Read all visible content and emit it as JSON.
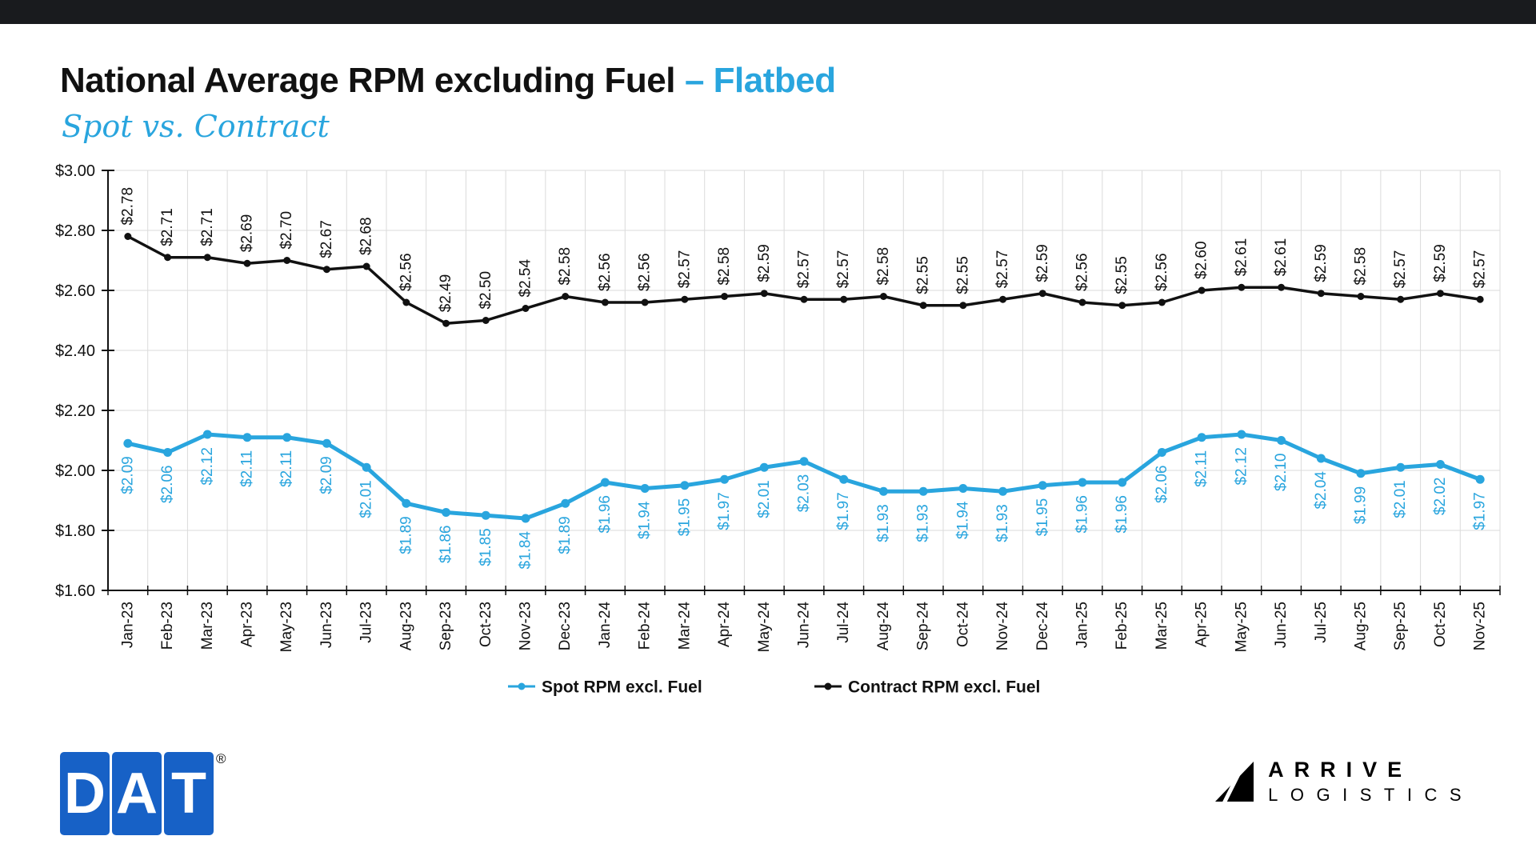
{
  "header": {
    "title_main": "National Average RPM excluding Fuel",
    "title_accent": "– Flatbed",
    "subtitle": "Spot vs. Contract"
  },
  "colors": {
    "accent_blue": "#29a5de",
    "contract_black": "#111111",
    "dat_logo_blue": "#1761c6",
    "top_bar": "#191b1e",
    "gridline": "#dbdbdb"
  },
  "chart_data": {
    "type": "line",
    "title": "National Average RPM excluding Fuel – Flatbed",
    "subtitle": "Spot vs. Contract",
    "x": [
      "Jan-23",
      "Feb-23",
      "Mar-23",
      "Apr-23",
      "May-23",
      "Jun-23",
      "Jul-23",
      "Aug-23",
      "Sep-23",
      "Oct-23",
      "Nov-23",
      "Dec-23",
      "Jan-24",
      "Feb-24",
      "Mar-24",
      "Apr-24",
      "May-24",
      "Jun-24",
      "Jul-24",
      "Aug-24",
      "Sep-24",
      "Oct-24",
      "Nov-24",
      "Dec-24",
      "Jan-25",
      "Feb-25",
      "Mar-25",
      "Apr-25",
      "May-25",
      "Jun-25",
      "Jul-25",
      "Aug-25",
      "Sep-25",
      "Oct-25",
      "Nov-25"
    ],
    "series": [
      {
        "name": "Spot RPM excl. Fuel",
        "color": "#29a5de",
        "label_side": "below",
        "values": [
          2.09,
          2.06,
          2.12,
          2.11,
          2.11,
          2.09,
          2.01,
          1.89,
          1.86,
          1.85,
          1.84,
          1.89,
          1.96,
          1.94,
          1.95,
          1.97,
          2.01,
          2.03,
          1.97,
          1.93,
          1.93,
          1.94,
          1.93,
          1.95,
          1.96,
          1.96,
          2.06,
          2.11,
          2.12,
          2.1,
          2.04,
          1.99,
          2.01,
          2.02,
          1.97
        ]
      },
      {
        "name": "Contract RPM excl. Fuel",
        "color": "#111111",
        "label_side": "above",
        "values": [
          2.78,
          2.71,
          2.71,
          2.69,
          2.7,
          2.67,
          2.68,
          2.56,
          2.49,
          2.5,
          2.54,
          2.58,
          2.56,
          2.56,
          2.57,
          2.58,
          2.59,
          2.57,
          2.57,
          2.58,
          2.55,
          2.55,
          2.57,
          2.59,
          2.56,
          2.55,
          2.56,
          2.6,
          2.61,
          2.61,
          2.59,
          2.58,
          2.57,
          2.59,
          2.57
        ]
      }
    ],
    "ylim": [
      1.6,
      3.0
    ],
    "ytick_step": 0.2,
    "ytick_labels": [
      "$3.00",
      "$2.80",
      "$2.60",
      "$2.40",
      "$2.20",
      "$2.00",
      "$1.80",
      "$1.60"
    ],
    "value_prefix": "$",
    "grid": true,
    "legend_position": "bottom"
  },
  "footer": {
    "dat": {
      "letters": [
        "D",
        "A",
        "T"
      ],
      "registered": "®"
    },
    "arrive": {
      "line1": "ARRIVE",
      "line2": "LOGISTICS"
    }
  }
}
